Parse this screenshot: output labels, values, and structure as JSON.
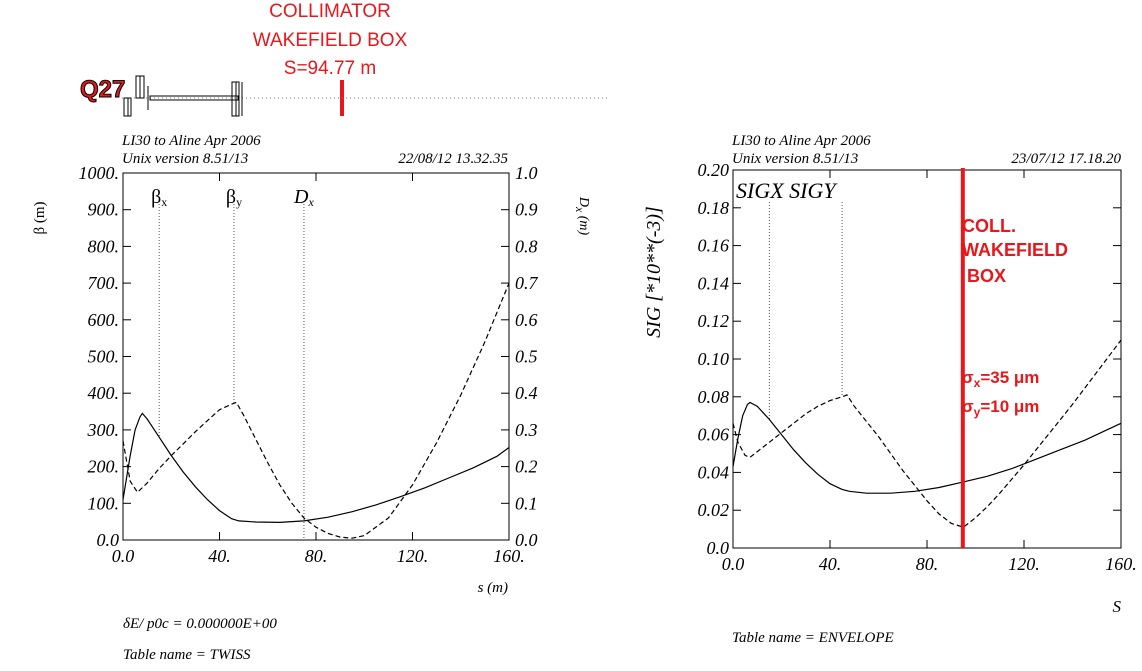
{
  "annotation_top": {
    "line1": "COLLIMATOR",
    "line2": "WAKEFIELD BOX",
    "line3": "S=94.77 m",
    "quad_label": "Q27"
  },
  "colors": {
    "red": "#e8171c",
    "black": "#000000"
  },
  "chart_data": [
    {
      "type": "line",
      "header_line1": "LI30 to Aline Apr 2006",
      "header_line2": "Unix version 8.51/13",
      "date": "22/08/12  13.32.35",
      "ylabel_left": "β (m)",
      "ylabel_right": "Dx (m)",
      "xlabel": "s (m)",
      "xlim": [
        0,
        160
      ],
      "ylim_left": [
        0,
        1000
      ],
      "ylim_right": [
        0,
        1.0
      ],
      "x_ticks": [
        "0.0",
        "40.",
        "80.",
        "120.",
        "160."
      ],
      "y_ticks_left": [
        "0.0",
        "100.",
        "200.",
        "300.",
        "400.",
        "500.",
        "600.",
        "700.",
        "800.",
        "900.",
        "1000."
      ],
      "y_ticks_right": [
        "0.0",
        "0.1",
        "0.2",
        "0.3",
        "0.4",
        "0.5",
        "0.6",
        "0.7",
        "0.8",
        "0.9",
        "1.0"
      ],
      "legend_markers": [
        {
          "label": "βx",
          "x": 15
        },
        {
          "label": "βy",
          "x": 46
        },
        {
          "label": "Dx",
          "x": 75
        }
      ],
      "series": [
        {
          "name": "βx",
          "style": "solid",
          "axis": "left",
          "x": [
            0,
            3,
            5,
            7,
            8,
            10,
            15,
            20,
            25,
            30,
            35,
            40,
            45,
            48,
            55,
            65,
            75,
            85,
            95,
            105,
            115,
            125,
            135,
            145,
            155,
            160
          ],
          "y": [
            110,
            230,
            300,
            335,
            345,
            330,
            280,
            230,
            185,
            145,
            110,
            80,
            58,
            52,
            49,
            48,
            52,
            62,
            77,
            96,
            118,
            142,
            169,
            196,
            228,
            252
          ]
        },
        {
          "name": "βy",
          "style": "dashed",
          "axis": "left",
          "x": [
            0,
            3,
            6,
            10,
            15,
            20,
            25,
            30,
            35,
            40,
            45,
            47,
            50,
            55,
            60,
            65,
            70,
            75,
            80,
            85,
            90,
            95,
            100,
            110,
            120,
            130,
            140,
            150,
            160
          ],
          "y": [
            270,
            160,
            130,
            155,
            195,
            230,
            262,
            295,
            325,
            355,
            370,
            375,
            340,
            275,
            210,
            150,
            100,
            60,
            35,
            18,
            8,
            5,
            12,
            60,
            150,
            265,
            395,
            540,
            700
          ]
        }
      ],
      "footer_formula": "δE/ p0c  =  0.000000E+00",
      "table_name": "Table name = TWISS"
    },
    {
      "type": "line",
      "header_line1": "LI30 to Aline Apr 2006",
      "header_line2": "Unix version 8.51/13",
      "date": "23/07/12  17.18.20",
      "ylabel": "SIG  [*10**(-3)]",
      "xlabel": "S",
      "xlim": [
        0,
        160
      ],
      "ylim": [
        0,
        0.2
      ],
      "x_ticks": [
        "0.0",
        "40.",
        "80.",
        "120.",
        "160."
      ],
      "y_ticks": [
        "0.0",
        "0.02",
        "0.04",
        "0.06",
        "0.08",
        "0.10",
        "0.12",
        "0.14",
        "0.16",
        "0.18",
        "0.20"
      ],
      "legend": "SIGX  SIGY",
      "legend_markers": [
        {
          "label": "SIGX",
          "x": 15
        },
        {
          "label": "SIGY",
          "x": 45
        }
      ],
      "series": [
        {
          "name": "SIGX",
          "style": "solid",
          "x": [
            0,
            2,
            4,
            6,
            7,
            10,
            15,
            20,
            25,
            30,
            35,
            40,
            45,
            48,
            55,
            65,
            75,
            85,
            95,
            105,
            115,
            125,
            135,
            145,
            155,
            160
          ],
          "y": [
            0.043,
            0.058,
            0.07,
            0.076,
            0.077,
            0.075,
            0.068,
            0.06,
            0.052,
            0.045,
            0.039,
            0.034,
            0.031,
            0.03,
            0.029,
            0.029,
            0.03,
            0.032,
            0.035,
            0.038,
            0.042,
            0.047,
            0.052,
            0.057,
            0.063,
            0.066
          ]
        },
        {
          "name": "SIGY",
          "style": "dashed",
          "x": [
            0,
            2,
            5,
            7,
            10,
            15,
            20,
            25,
            30,
            35,
            40,
            45,
            47,
            50,
            55,
            60,
            65,
            70,
            75,
            80,
            85,
            90,
            95,
            100,
            105,
            110,
            120,
            130,
            140,
            150,
            160
          ],
          "y": [
            0.066,
            0.056,
            0.049,
            0.048,
            0.051,
            0.056,
            0.061,
            0.066,
            0.071,
            0.075,
            0.078,
            0.08,
            0.081,
            0.075,
            0.067,
            0.059,
            0.05,
            0.041,
            0.033,
            0.025,
            0.018,
            0.013,
            0.011,
            0.016,
            0.022,
            0.029,
            0.044,
            0.06,
            0.076,
            0.093,
            0.11
          ]
        }
      ],
      "marker_line": {
        "x": 94.77
      },
      "box_text": [
        "COLL.",
        "WAKEFIELD",
        " BOX"
      ],
      "sigma_x": "σx=35 μm",
      "sigma_y": "σy=10 μm",
      "table_name": "Table name = ENVELOPE"
    }
  ]
}
